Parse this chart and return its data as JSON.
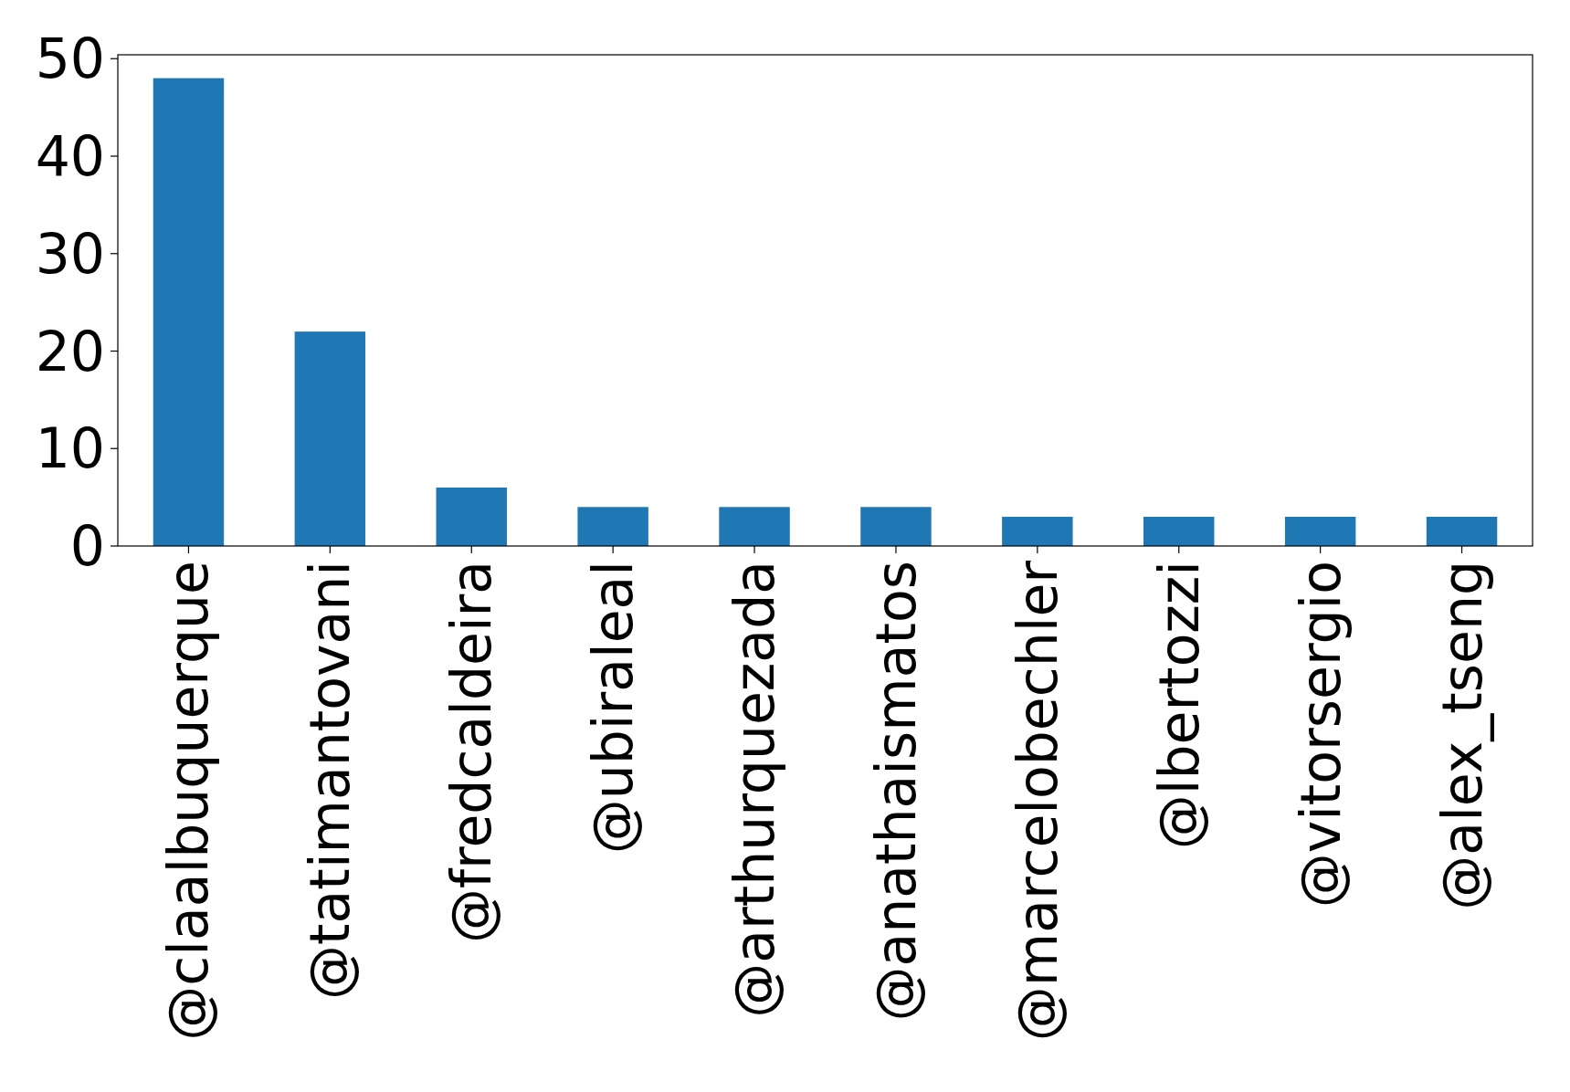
{
  "chart_data": {
    "type": "bar",
    "categories": [
      "@claalbuquerque",
      "@tatimantovani",
      "@fredcaldeira",
      "@ubiraleal",
      "@arthurquezada",
      "@anathaismatos",
      "@marcelobechler",
      "@lbertozzi",
      "@vitorsergio",
      "@alex_tseng"
    ],
    "values": [
      48,
      22,
      6,
      4,
      4,
      4,
      3,
      3,
      3,
      3
    ],
    "color": "#1f77b4",
    "ylim": [
      0,
      50.4
    ],
    "yticks": [
      0,
      10,
      20,
      30,
      40,
      50
    ]
  }
}
